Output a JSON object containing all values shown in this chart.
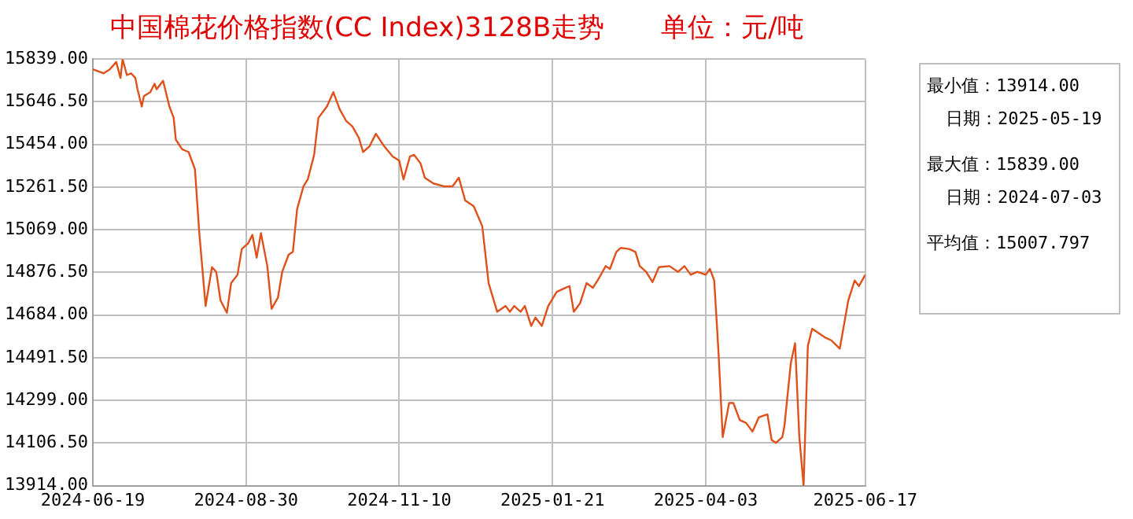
{
  "chart_data": {
    "type": "line",
    "title": "中国棉花价格指数(CC Index)3128B走势",
    "subtitle": "单位：元/吨",
    "x": [
      "2024-06-19",
      "2024-06-24",
      "2024-06-27",
      "2024-06-30",
      "2024-07-02",
      "2024-07-03",
      "2024-07-05",
      "2024-07-07",
      "2024-07-09",
      "2024-07-10",
      "2024-07-12",
      "2024-07-13",
      "2024-07-16",
      "2024-07-18",
      "2024-07-19",
      "2024-07-22",
      "2024-07-23",
      "2024-07-25",
      "2024-07-27",
      "2024-07-28",
      "2024-07-31",
      "2024-08-03",
      "2024-08-06",
      "2024-08-08",
      "2024-08-11",
      "2024-08-14",
      "2024-08-16",
      "2024-08-18",
      "2024-08-21",
      "2024-08-23",
      "2024-08-26",
      "2024-08-28",
      "2024-08-31",
      "2024-09-02",
      "2024-09-04",
      "2024-09-06",
      "2024-09-09",
      "2024-09-11",
      "2024-09-14",
      "2024-09-16",
      "2024-09-19",
      "2024-09-21",
      "2024-09-23",
      "2024-09-26",
      "2024-09-28",
      "2024-10-01",
      "2024-10-03",
      "2024-10-07",
      "2024-10-10",
      "2024-10-13",
      "2024-10-16",
      "2024-10-19",
      "2024-10-22",
      "2024-10-24",
      "2024-10-27",
      "2024-10-30",
      "2024-11-03",
      "2024-11-07",
      "2024-11-10",
      "2024-11-12",
      "2024-11-15",
      "2024-11-17",
      "2024-11-20",
      "2024-11-22",
      "2024-11-26",
      "2024-12-01",
      "2024-12-05",
      "2024-12-08",
      "2024-12-11",
      "2024-12-15",
      "2024-12-19",
      "2024-12-22",
      "2024-12-26",
      "2024-12-30",
      "2025-01-01",
      "2025-01-03",
      "2025-01-06",
      "2025-01-08",
      "2025-01-11",
      "2025-01-13",
      "2025-01-16",
      "2025-01-19",
      "2025-01-23",
      "2025-01-26",
      "2025-01-29",
      "2025-01-31",
      "2025-02-03",
      "2025-02-06",
      "2025-02-09",
      "2025-02-12",
      "2025-02-15",
      "2025-02-17",
      "2025-02-20",
      "2025-02-22",
      "2025-02-26",
      "2025-03-01",
      "2025-03-03",
      "2025-03-06",
      "2025-03-09",
      "2025-03-12",
      "2025-03-17",
      "2025-03-21",
      "2025-03-24",
      "2025-03-27",
      "2025-03-30",
      "2025-04-03",
      "2025-04-05",
      "2025-04-07",
      "2025-04-09",
      "2025-04-11",
      "2025-04-14",
      "2025-04-16",
      "2025-04-19",
      "2025-04-22",
      "2025-04-25",
      "2025-04-28",
      "2025-05-02",
      "2025-05-04",
      "2025-05-06",
      "2025-05-09",
      "2025-05-10",
      "2025-05-13",
      "2025-05-15",
      "2025-05-17",
      "2025-05-19",
      "2025-05-21",
      "2025-05-23",
      "2025-05-29",
      "2025-06-01",
      "2025-06-05",
      "2025-06-09",
      "2025-06-12",
      "2025-06-14",
      "2025-06-17"
    ],
    "series": [
      {
        "color": "#e0501a",
        "values": [
          15793,
          15775,
          15793,
          15826,
          15754,
          15839,
          15767,
          15775,
          15754,
          15703,
          15625,
          15672,
          15690,
          15728,
          15703,
          15741,
          15703,
          15625,
          15574,
          15476,
          15432,
          15420,
          15342,
          15059,
          14725,
          14900,
          14879,
          14750,
          14694,
          14828,
          14866,
          14982,
          15008,
          15046,
          14943,
          15054,
          14905,
          14712,
          14763,
          14879,
          14956,
          14969,
          15162,
          15265,
          15296,
          15407,
          15574,
          15625,
          15690,
          15613,
          15561,
          15535,
          15484,
          15420,
          15445,
          15502,
          15445,
          15399,
          15381,
          15296,
          15399,
          15407,
          15368,
          15304,
          15278,
          15265,
          15265,
          15304,
          15201,
          15175,
          15085,
          14828,
          14699,
          14725,
          14699,
          14725,
          14699,
          14725,
          14635,
          14673,
          14635,
          14725,
          14789,
          14802,
          14815,
          14699,
          14738,
          14828,
          14807,
          14853,
          14905,
          14892,
          14969,
          14987,
          14982,
          14969,
          14905,
          14879,
          14833,
          14900,
          14905,
          14879,
          14905,
          14866,
          14879,
          14866,
          14892,
          14840,
          14519,
          14133,
          14287,
          14287,
          14210,
          14197,
          14158,
          14223,
          14236,
          14120,
          14107,
          14133,
          14184,
          14467,
          14557,
          14133,
          13914,
          14545,
          14622,
          14583,
          14570,
          14532,
          14750,
          14840,
          14815,
          14866
        ]
      }
    ],
    "xlim": [
      "2024-06-19",
      "2025-06-17"
    ],
    "xticks": [
      "2024-06-19",
      "2024-08-30",
      "2024-11-10",
      "2025-01-21",
      "2025-04-03",
      "2025-06-17"
    ],
    "ylim": [
      13914,
      15839
    ],
    "yticks": [
      {
        "value": 13914,
        "label": "13914.00"
      },
      {
        "value": 14106.5,
        "label": "14106.50"
      },
      {
        "value": 14299,
        "label": "14299.00"
      },
      {
        "value": 14491.5,
        "label": "14491.50"
      },
      {
        "value": 14684,
        "label": "14684.00"
      },
      {
        "value": 14876.5,
        "label": "14876.50"
      },
      {
        "value": 15069,
        "label": "15069.00"
      },
      {
        "value": 15261.5,
        "label": "15261.50"
      },
      {
        "value": 15454,
        "label": "15454.00"
      },
      {
        "value": 15646.5,
        "label": "15646.50"
      },
      {
        "value": 15839,
        "label": "15839.00"
      }
    ],
    "grid": true,
    "legend": false,
    "marker": "none",
    "line_style": "solid",
    "annotations": [
      "最小值：13914.00",
      "日期：2025-05-19",
      "最大值：15839.00",
      "日期：2024-07-03",
      "平均值：15007.797"
    ]
  }
}
